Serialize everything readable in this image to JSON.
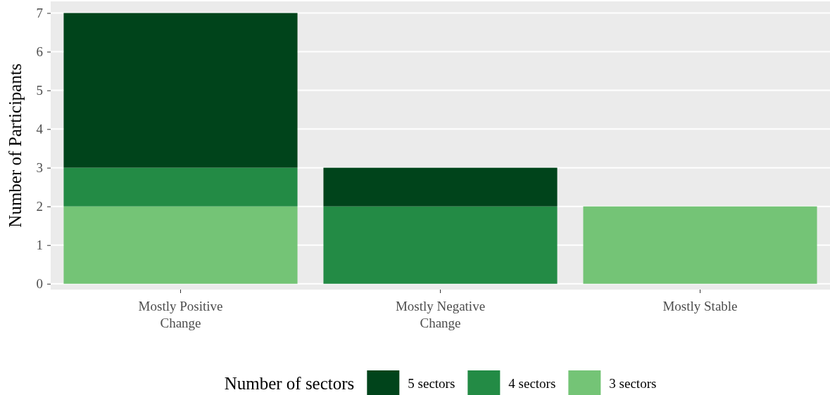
{
  "chart_data": {
    "type": "bar",
    "stacked": true,
    "ylabel": "Number of Participants",
    "legend_title": "Number of sectors",
    "legend": "bottom",
    "grid": "y",
    "categories": [
      "Mostly Positive\nChange",
      "Mostly Negative\nChange",
      "Mostly Stable"
    ],
    "series": [
      {
        "name": "3 sectors",
        "color": "#74c476",
        "values": [
          2,
          0,
          2
        ]
      },
      {
        "name": "4 sectors",
        "color": "#238b45",
        "values": [
          1,
          2,
          0
        ]
      },
      {
        "name": "5 sectors",
        "color": "#00441b",
        "values": [
          4,
          1,
          0
        ]
      }
    ],
    "ylim": [
      -0.15,
      7.3
    ],
    "yticks": [
      0,
      1,
      2,
      3,
      4,
      5,
      6,
      7
    ]
  }
}
